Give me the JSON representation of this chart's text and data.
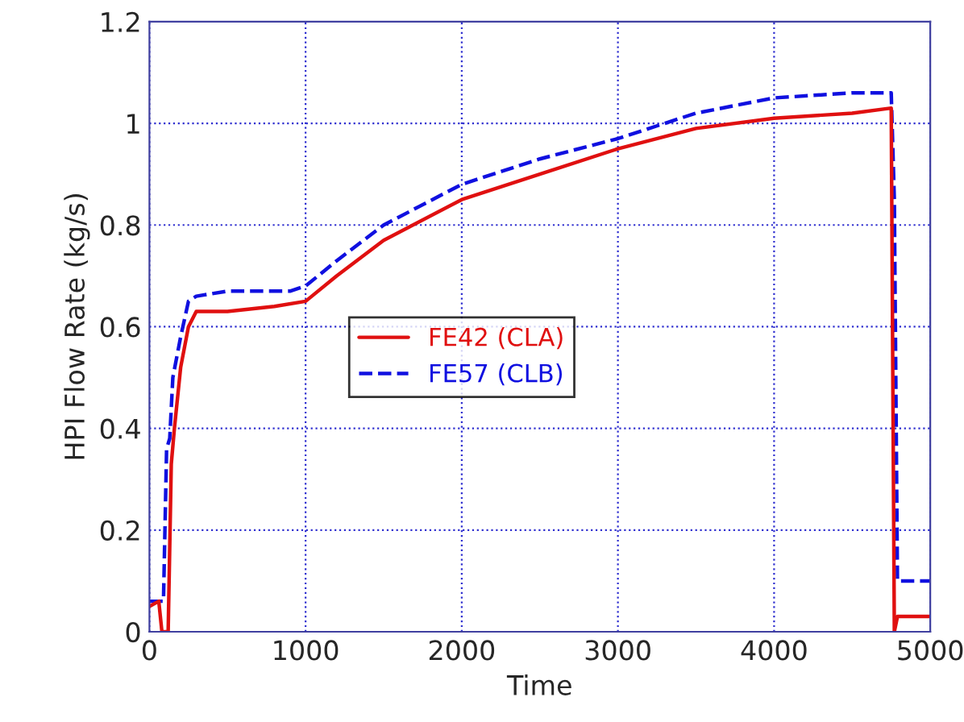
{
  "chart_data": {
    "type": "line",
    "xlabel": "Time",
    "ylabel": "HPI Flow Rate (kg/s)",
    "xlim": [
      0,
      5000
    ],
    "ylim": [
      0,
      1.2
    ],
    "xticks": [
      0,
      1000,
      2000,
      3000,
      4000,
      5000
    ],
    "yticks": [
      0,
      0.2,
      0.4,
      0.6,
      0.8,
      1,
      1.2
    ],
    "grid": true,
    "legend": "center",
    "series": [
      {
        "name": "FE57 (CLB)",
        "color": "#1010e0",
        "line_style": "dashed",
        "x": [
          0,
          90,
          110,
          130,
          150,
          200,
          250,
          300,
          500,
          700,
          900,
          1000,
          1200,
          1500,
          2000,
          2500,
          3000,
          3500,
          4000,
          4500,
          4750,
          4770,
          4790,
          4800,
          5000
        ],
        "values": [
          0.06,
          0.06,
          0.36,
          0.38,
          0.5,
          0.58,
          0.65,
          0.66,
          0.67,
          0.67,
          0.67,
          0.68,
          0.73,
          0.8,
          0.88,
          0.93,
          0.97,
          1.02,
          1.05,
          1.06,
          1.06,
          0.85,
          0.1,
          0.1,
          0.1
        ]
      },
      {
        "name": "FE42 (CLA)",
        "color": "#e01010",
        "line_style": "solid",
        "x": [
          0,
          60,
          80,
          120,
          140,
          160,
          200,
          250,
          300,
          500,
          800,
          1000,
          1200,
          1500,
          2000,
          2500,
          3000,
          3500,
          4000,
          4500,
          4750,
          4770,
          4790,
          5000
        ],
        "values": [
          0.05,
          0.06,
          0.0,
          0.0,
          0.33,
          0.4,
          0.52,
          0.6,
          0.63,
          0.63,
          0.64,
          0.65,
          0.7,
          0.77,
          0.85,
          0.9,
          0.95,
          0.99,
          1.01,
          1.02,
          1.03,
          0.0,
          0.03,
          0.03
        ]
      }
    ]
  }
}
